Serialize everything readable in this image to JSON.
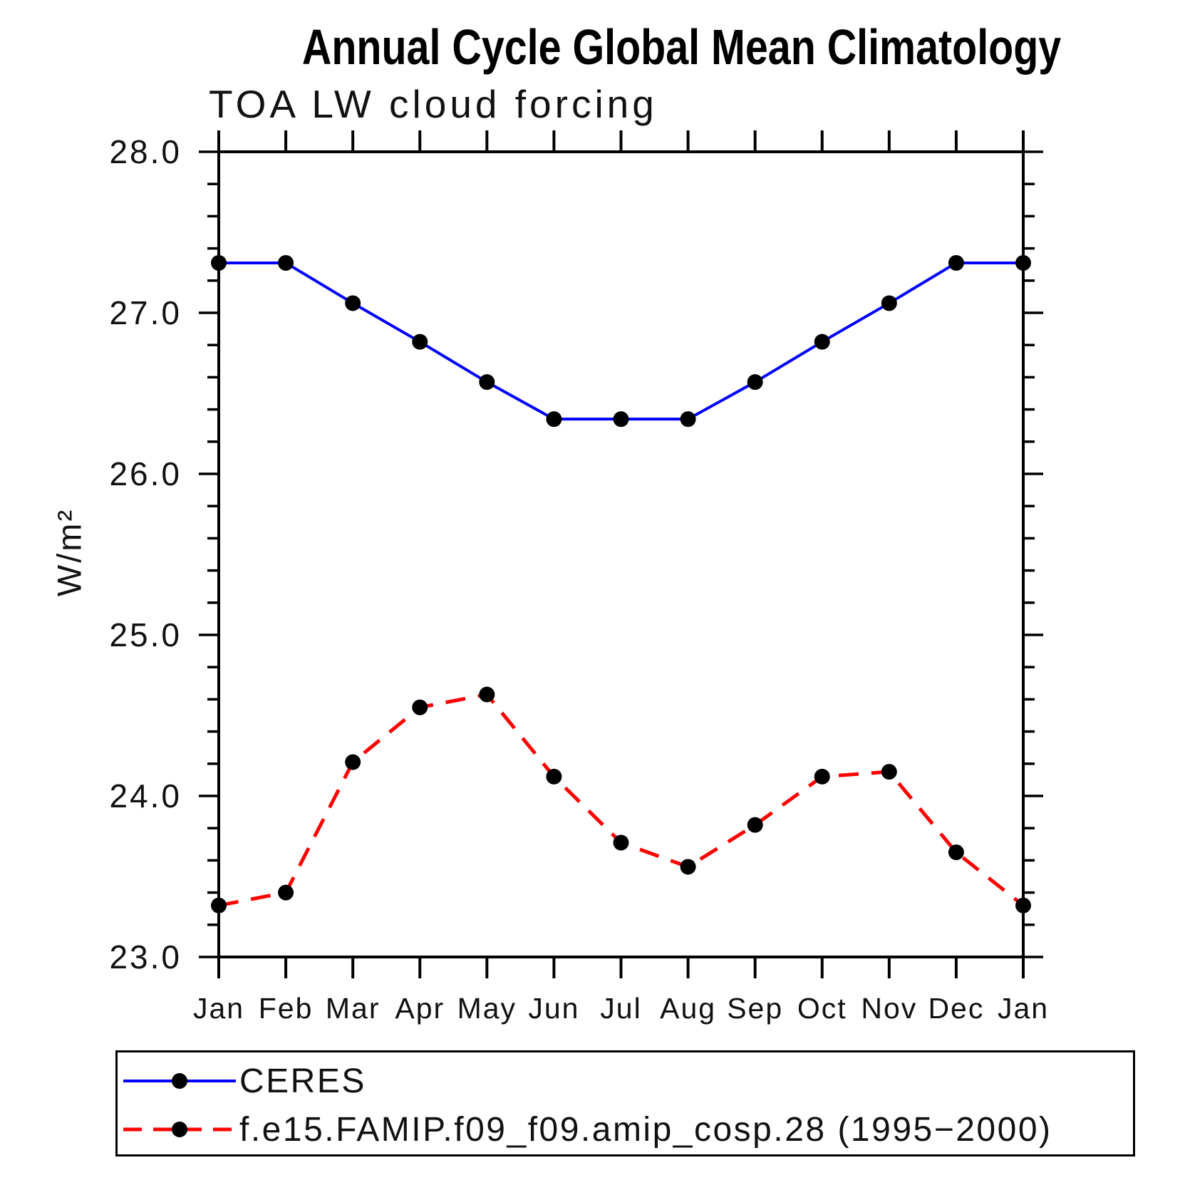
{
  "header": {
    "title": "Annual Cycle Global Mean Climatology",
    "subtitle": "TOA LW cloud forcing"
  },
  "chart_data": {
    "type": "line",
    "title": "Annual Cycle Global Mean Climatology",
    "subtitle": "TOA LW cloud forcing",
    "xlabel": "",
    "ylabel": "W/m²",
    "categories": [
      "Jan",
      "Feb",
      "Mar",
      "Apr",
      "May",
      "Jun",
      "Jul",
      "Aug",
      "Sep",
      "Oct",
      "Nov",
      "Dec",
      "Jan"
    ],
    "ylim": [
      23.0,
      28.0
    ],
    "y_major_ticks": [
      "28.0",
      "27.0",
      "26.0",
      "25.0",
      "24.0",
      "23.0"
    ],
    "y_minor_step": 0.2,
    "grid": false,
    "legend_position": "bottom",
    "series": [
      {
        "name": "CERES",
        "color": "#0000ff",
        "line_style": "solid",
        "marker": "filled-circle",
        "marker_color": "#000000",
        "values": [
          27.31,
          27.31,
          27.06,
          26.82,
          26.57,
          26.34,
          26.34,
          26.34,
          26.57,
          26.82,
          27.06,
          27.31,
          27.31
        ]
      },
      {
        "name": "f.e15.FAMIP.f09_f09.amip_cosp.28 (1995−2000)",
        "color": "#ff0000",
        "line_style": "dashed",
        "marker": "filled-circle",
        "marker_color": "#000000",
        "values": [
          23.32,
          23.4,
          24.21,
          24.55,
          24.63,
          24.12,
          23.71,
          23.56,
          23.82,
          24.12,
          24.15,
          23.65,
          23.32
        ]
      }
    ]
  }
}
